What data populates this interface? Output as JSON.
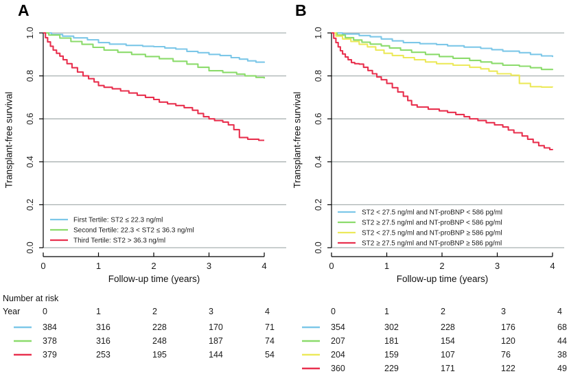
{
  "figure": {
    "panels": [
      {
        "label": "A"
      },
      {
        "label": "B"
      }
    ],
    "risk_header": {
      "title": "Number at risk",
      "year_label": "Year"
    }
  },
  "colors": {
    "blue": "#7cc7e8",
    "green": "#8bdb6b",
    "yellow": "#ece95a",
    "red": "#e8304e",
    "grid": "#a8b0b0",
    "axis": "#000000",
    "text": "#1a1a1a"
  },
  "chart_data": [
    {
      "type": "line",
      "panel": "A",
      "xlabel": "Follow-up time (years)",
      "ylabel": "Transplant-free survival",
      "xlim": [
        0,
        4
      ],
      "ylim": [
        0.0,
        1.0
      ],
      "xticks": [
        "0",
        "1",
        "2",
        "3",
        "4"
      ],
      "yticks": [
        "1.0",
        "0.8",
        "0.6",
        "0.4",
        "0.2",
        "0.0"
      ],
      "grid": "horizontal",
      "legend_position": "bottom-left",
      "at_risk_times": [
        0,
        1,
        2,
        3,
        4
      ],
      "series": [
        {
          "name": "First Tertile: ST2 ≤ 22.3 ng/ml",
          "color_key": "blue",
          "at_risk": [
            384,
            316,
            228,
            170,
            71
          ],
          "steps": [
            [
              0,
              1.0
            ],
            [
              0.15,
              0.993
            ],
            [
              0.35,
              0.985
            ],
            [
              0.55,
              0.977
            ],
            [
              0.8,
              0.968
            ],
            [
              1.0,
              0.955
            ],
            [
              1.2,
              0.948
            ],
            [
              1.5,
              0.942
            ],
            [
              1.8,
              0.938
            ],
            [
              2.0,
              0.936
            ],
            [
              2.2,
              0.93
            ],
            [
              2.4,
              0.925
            ],
            [
              2.6,
              0.914
            ],
            [
              2.8,
              0.908
            ],
            [
              3.0,
              0.9
            ],
            [
              3.2,
              0.895
            ],
            [
              3.4,
              0.885
            ],
            [
              3.55,
              0.878
            ],
            [
              3.7,
              0.87
            ],
            [
              3.85,
              0.864
            ],
            [
              4,
              0.861
            ]
          ]
        },
        {
          "name": "Second Tertile: 22.3 < ST2 ≤ 36.3 ng/ml",
          "color_key": "green",
          "at_risk": [
            378,
            316,
            248,
            187,
            74
          ],
          "steps": [
            [
              0,
              1.0
            ],
            [
              0.1,
              0.99
            ],
            [
              0.3,
              0.976
            ],
            [
              0.5,
              0.96
            ],
            [
              0.7,
              0.947
            ],
            [
              0.9,
              0.933
            ],
            [
              1.1,
              0.92
            ],
            [
              1.35,
              0.91
            ],
            [
              1.6,
              0.9
            ],
            [
              1.85,
              0.89
            ],
            [
              2.1,
              0.88
            ],
            [
              2.35,
              0.868
            ],
            [
              2.6,
              0.855
            ],
            [
              2.8,
              0.84
            ],
            [
              3.0,
              0.824
            ],
            [
              3.25,
              0.816
            ],
            [
              3.5,
              0.808
            ],
            [
              3.65,
              0.8
            ],
            [
              3.85,
              0.793
            ],
            [
              4,
              0.788
            ]
          ]
        },
        {
          "name": "Third Tertile: ST2 > 36.3 ng/ml",
          "color_key": "red",
          "at_risk": [
            379,
            253,
            195,
            144,
            54
          ],
          "steps": [
            [
              0,
              1.0
            ],
            [
              0.04,
              0.978
            ],
            [
              0.08,
              0.958
            ],
            [
              0.13,
              0.938
            ],
            [
              0.18,
              0.92
            ],
            [
              0.24,
              0.905
            ],
            [
              0.3,
              0.892
            ],
            [
              0.36,
              0.875
            ],
            [
              0.43,
              0.857
            ],
            [
              0.52,
              0.838
            ],
            [
              0.62,
              0.818
            ],
            [
              0.72,
              0.8
            ],
            [
              0.82,
              0.787
            ],
            [
              0.92,
              0.772
            ],
            [
              1.0,
              0.755
            ],
            [
              1.1,
              0.747
            ],
            [
              1.25,
              0.74
            ],
            [
              1.4,
              0.73
            ],
            [
              1.55,
              0.72
            ],
            [
              1.7,
              0.71
            ],
            [
              1.85,
              0.7
            ],
            [
              2.0,
              0.69
            ],
            [
              2.1,
              0.678
            ],
            [
              2.25,
              0.67
            ],
            [
              2.4,
              0.662
            ],
            [
              2.55,
              0.652
            ],
            [
              2.7,
              0.64
            ],
            [
              2.8,
              0.625
            ],
            [
              2.9,
              0.61
            ],
            [
              3.0,
              0.6
            ],
            [
              3.1,
              0.592
            ],
            [
              3.25,
              0.585
            ],
            [
              3.35,
              0.572
            ],
            [
              3.45,
              0.55
            ],
            [
              3.55,
              0.513
            ],
            [
              3.7,
              0.505
            ],
            [
              3.9,
              0.5
            ],
            [
              4,
              0.5
            ]
          ]
        }
      ]
    },
    {
      "type": "line",
      "panel": "B",
      "xlabel": "Follow-up time (years)",
      "ylabel": "Transplant-free survival",
      "xlim": [
        0,
        4
      ],
      "ylim": [
        0.0,
        1.0
      ],
      "xticks": [
        "0",
        "1",
        "2",
        "3",
        "4"
      ],
      "yticks": [
        "1.0",
        "0.8",
        "0.6",
        "0.4",
        "0.2",
        "0.0"
      ],
      "grid": "horizontal",
      "legend_position": "bottom-left",
      "at_risk_times": [
        0,
        1,
        2,
        3,
        4
      ],
      "series": [
        {
          "name": "ST2 < 27.5 ng/ml and NT-proBNP < 586 pg/ml",
          "color_key": "blue",
          "at_risk": [
            354,
            302,
            228,
            176,
            68
          ],
          "steps": [
            [
              0,
              1.0
            ],
            [
              0.2,
              0.995
            ],
            [
              0.5,
              0.988
            ],
            [
              0.7,
              0.982
            ],
            [
              0.9,
              0.972
            ],
            [
              1.1,
              0.963
            ],
            [
              1.3,
              0.955
            ],
            [
              1.6,
              0.95
            ],
            [
              1.9,
              0.946
            ],
            [
              2.1,
              0.94
            ],
            [
              2.4,
              0.934
            ],
            [
              2.7,
              0.928
            ],
            [
              2.9,
              0.922
            ],
            [
              3.1,
              0.915
            ],
            [
              3.4,
              0.908
            ],
            [
              3.6,
              0.9
            ],
            [
              3.8,
              0.893
            ],
            [
              4,
              0.888
            ]
          ]
        },
        {
          "name": "ST2 ≥ 27.5 ng/ml and NT-proBNP < 586 pg/ml",
          "color_key": "green",
          "at_risk": [
            207,
            181,
            154,
            120,
            44
          ],
          "steps": [
            [
              0,
              1.0
            ],
            [
              0.1,
              0.99
            ],
            [
              0.25,
              0.978
            ],
            [
              0.4,
              0.967
            ],
            [
              0.55,
              0.957
            ],
            [
              0.7,
              0.948
            ],
            [
              0.9,
              0.94
            ],
            [
              1.05,
              0.93
            ],
            [
              1.25,
              0.92
            ],
            [
              1.45,
              0.91
            ],
            [
              1.7,
              0.9
            ],
            [
              1.95,
              0.89
            ],
            [
              2.2,
              0.882
            ],
            [
              2.5,
              0.872
            ],
            [
              2.7,
              0.865
            ],
            [
              2.9,
              0.858
            ],
            [
              3.1,
              0.85
            ],
            [
              3.4,
              0.845
            ],
            [
              3.6,
              0.838
            ],
            [
              3.8,
              0.83
            ],
            [
              4,
              0.827
            ]
          ]
        },
        {
          "name": "ST2 < 27.5 ng/ml and NT-proBNP ≥ 586 pg/ml",
          "color_key": "yellow",
          "at_risk": [
            204,
            159,
            107,
            76,
            38
          ],
          "steps": [
            [
              0,
              1.0
            ],
            [
              0.08,
              0.985
            ],
            [
              0.2,
              0.972
            ],
            [
              0.35,
              0.96
            ],
            [
              0.5,
              0.947
            ],
            [
              0.65,
              0.935
            ],
            [
              0.8,
              0.92
            ],
            [
              0.95,
              0.905
            ],
            [
              1.1,
              0.895
            ],
            [
              1.3,
              0.885
            ],
            [
              1.5,
              0.875
            ],
            [
              1.7,
              0.865
            ],
            [
              1.9,
              0.857
            ],
            [
              2.2,
              0.85
            ],
            [
              2.5,
              0.84
            ],
            [
              2.7,
              0.833
            ],
            [
              2.85,
              0.822
            ],
            [
              3.0,
              0.81
            ],
            [
              3.25,
              0.803
            ],
            [
              3.4,
              0.765
            ],
            [
              3.6,
              0.75
            ],
            [
              3.8,
              0.748
            ],
            [
              4,
              0.747
            ]
          ]
        },
        {
          "name": "ST2 ≥ 27.5 ng/ml and NT-proBNP ≥ 586 pg/ml",
          "color_key": "red",
          "at_risk": [
            360,
            229,
            171,
            122,
            49
          ],
          "steps": [
            [
              0,
              1.0
            ],
            [
              0.04,
              0.975
            ],
            [
              0.08,
              0.955
            ],
            [
              0.12,
              0.935
            ],
            [
              0.16,
              0.917
            ],
            [
              0.2,
              0.902
            ],
            [
              0.25,
              0.888
            ],
            [
              0.3,
              0.875
            ],
            [
              0.36,
              0.862
            ],
            [
              0.42,
              0.857
            ],
            [
              0.5,
              0.855
            ],
            [
              0.58,
              0.84
            ],
            [
              0.66,
              0.825
            ],
            [
              0.74,
              0.81
            ],
            [
              0.82,
              0.795
            ],
            [
              0.9,
              0.782
            ],
            [
              1.0,
              0.765
            ],
            [
              1.1,
              0.745
            ],
            [
              1.2,
              0.725
            ],
            [
              1.3,
              0.705
            ],
            [
              1.38,
              0.685
            ],
            [
              1.45,
              0.665
            ],
            [
              1.55,
              0.655
            ],
            [
              1.75,
              0.645
            ],
            [
              1.95,
              0.637
            ],
            [
              2.1,
              0.63
            ],
            [
              2.25,
              0.62
            ],
            [
              2.4,
              0.61
            ],
            [
              2.5,
              0.6
            ],
            [
              2.65,
              0.592
            ],
            [
              2.8,
              0.582
            ],
            [
              2.95,
              0.572
            ],
            [
              3.1,
              0.562
            ],
            [
              3.2,
              0.548
            ],
            [
              3.3,
              0.535
            ],
            [
              3.45,
              0.52
            ],
            [
              3.55,
              0.505
            ],
            [
              3.65,
              0.49
            ],
            [
              3.75,
              0.475
            ],
            [
              3.85,
              0.465
            ],
            [
              3.95,
              0.457
            ],
            [
              4,
              0.455
            ]
          ]
        }
      ]
    }
  ]
}
